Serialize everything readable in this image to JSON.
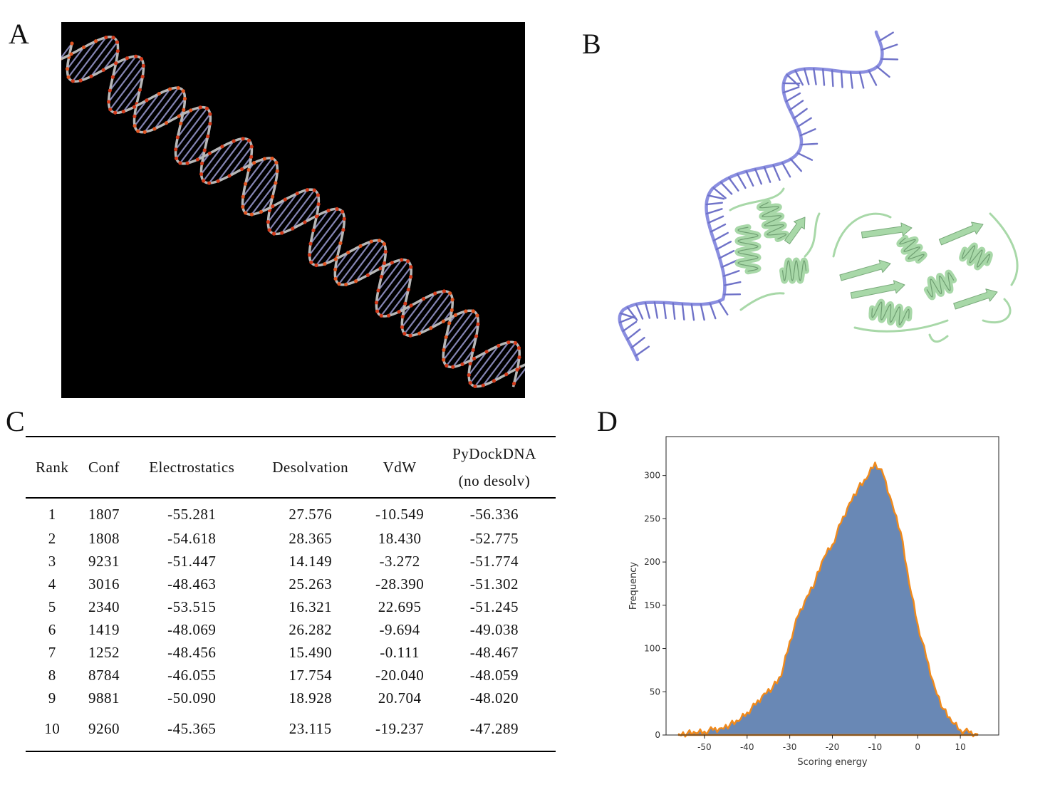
{
  "panels": {
    "a_label": "A",
    "b_label": "B",
    "c_label": "C",
    "d_label": "D"
  },
  "colors": {
    "dna_background": "#000000",
    "dna_ribbon": "#8a8ee0",
    "protein_ribbon": "#a8d8a8",
    "hist_fill": "#6988b5",
    "hist_edge": "#f08a1c"
  },
  "table": {
    "headers": {
      "rank": "Rank",
      "conf": "Conf",
      "electrostatics": "Electrostatics",
      "desolvation": "Desolvation",
      "vdw": "VdW",
      "pydock_line1": "PyDockDNA",
      "pydock_line2": "(no desolv)"
    },
    "rows": [
      [
        "1",
        "1807",
        "-55.281",
        "27.576",
        "-10.549",
        "-56.336"
      ],
      [
        "2",
        "1808",
        "-54.618",
        "28.365",
        "18.430",
        "-52.775"
      ],
      [
        "3",
        "9231",
        "-51.447",
        "14.149",
        "-3.272",
        "-51.774"
      ],
      [
        "4",
        "3016",
        "-48.463",
        "25.263",
        "-28.390",
        "-51.302"
      ],
      [
        "5",
        "2340",
        "-53.515",
        "16.321",
        "22.695",
        "-51.245"
      ],
      [
        "6",
        "1419",
        "-48.069",
        "26.282",
        "-9.694",
        "-49.038"
      ],
      [
        "7",
        "1252",
        "-48.456",
        "15.490",
        "-0.111",
        "-48.467"
      ],
      [
        "8",
        "8784",
        "-46.055",
        "17.754",
        "-20.040",
        "-48.059"
      ],
      [
        "9",
        "9881",
        "-50.090",
        "18.928",
        "20.704",
        "-48.020"
      ],
      [
        "10",
        "9260",
        "-45.365",
        "23.115",
        "-19.237",
        "-47.289"
      ]
    ]
  },
  "chart_data": {
    "type": "area",
    "xlabel": "Scoring energy",
    "ylabel": "Frequency",
    "xlim": [
      -59,
      19
    ],
    "ylim": [
      0,
      345
    ],
    "xticks": [
      -50,
      -40,
      -30,
      -20,
      -10,
      0,
      10
    ],
    "yticks": [
      0,
      50,
      100,
      150,
      200,
      250,
      300
    ],
    "x": [
      -56,
      -54,
      -52,
      -50,
      -48,
      -46,
      -44,
      -42,
      -40,
      -38,
      -36,
      -34,
      -32,
      -30,
      -28,
      -26,
      -24,
      -22,
      -20,
      -18,
      -16,
      -14,
      -12,
      -10,
      -8,
      -6,
      -4,
      -2,
      0,
      2,
      4,
      6,
      8,
      10,
      12,
      14
    ],
    "values": [
      1,
      2,
      2,
      4,
      6,
      8,
      12,
      16,
      26,
      35,
      48,
      55,
      68,
      108,
      138,
      160,
      178,
      205,
      220,
      245,
      268,
      285,
      296,
      315,
      300,
      268,
      235,
      175,
      128,
      90,
      55,
      30,
      15,
      6,
      3,
      1
    ]
  }
}
